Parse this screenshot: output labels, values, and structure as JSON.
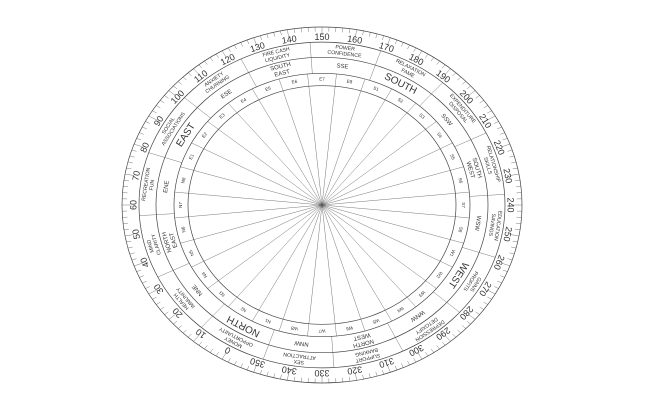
{
  "degree_labels": [
    0,
    10,
    20,
    30,
    40,
    50,
    60,
    70,
    80,
    90,
    100,
    110,
    120,
    130,
    140,
    150,
    160,
    170,
    180,
    190,
    200,
    210,
    220,
    230,
    240,
    250,
    260,
    270,
    280,
    290,
    300,
    310,
    320,
    330,
    340,
    350
  ],
  "zones": [
    {
      "direction": [
        "NORTH"
      ],
      "area": [
        "MONEY",
        "OPPORTUNITY"
      ]
    },
    {
      "direction": [
        "NNE"
      ],
      "area": [
        "HEALTH",
        "IMMUNITY"
      ]
    },
    {
      "direction": [
        "NORTH",
        "EAST"
      ],
      "area": [
        "MIND",
        "CLARITY"
      ]
    },
    {
      "direction": [
        "ENE"
      ],
      "area": [
        "RECREATION",
        "FUN"
      ]
    },
    {
      "direction": [
        "EAST"
      ],
      "area": [
        "SOCIAL",
        "ASSOCIATIONS"
      ]
    },
    {
      "direction": [
        "ESE"
      ],
      "area": [
        "ANXIETY",
        "CHURNING"
      ]
    },
    {
      "direction": [
        "SOUTH",
        "EAST"
      ],
      "area": [
        "FIRE CASH",
        "LIQUIDITY"
      ]
    },
    {
      "direction": [
        "SSE"
      ],
      "area": [
        "POWER",
        "CONFIDENCE"
      ]
    },
    {
      "direction": [
        "SOUTH"
      ],
      "area": [
        "RELAXATION",
        "FAME"
      ]
    },
    {
      "direction": [
        "SSW"
      ],
      "area": [
        "EXPENDITURE",
        "DISPOSAL"
      ]
    },
    {
      "direction": [
        "SOUTH",
        "WEST"
      ],
      "area": [
        "RELATIONSHIP",
        "SKILLS"
      ]
    },
    {
      "direction": [
        "WSW"
      ],
      "area": [
        "EDUCATION",
        "SAVINGS"
      ]
    },
    {
      "direction": [
        "WEST"
      ],
      "area": [
        "GAINS",
        "PROFITS"
      ]
    },
    {
      "direction": [
        "WNW"
      ],
      "area": [
        "DEPRESSION",
        "DETOXIFY"
      ]
    },
    {
      "direction": [
        "NORTH",
        "WEST"
      ],
      "area": [
        "SUPPORT",
        "BANKING"
      ]
    },
    {
      "direction": [
        "NNW"
      ],
      "area": [
        "SEX",
        "ATTRACTION"
      ]
    }
  ],
  "entities": [
    "E1",
    "E2",
    "E3",
    "E4",
    "E5",
    "E6",
    "E7",
    "E8",
    "S1",
    "S2",
    "S3",
    "S4",
    "S5",
    "S6",
    "S7",
    "S8",
    "W1",
    "W2",
    "W3",
    "W4",
    "W5",
    "W6",
    "W7",
    "W8",
    "N1",
    "N2",
    "N3",
    "N4",
    "N5",
    "N6",
    "N7",
    "N8"
  ]
}
